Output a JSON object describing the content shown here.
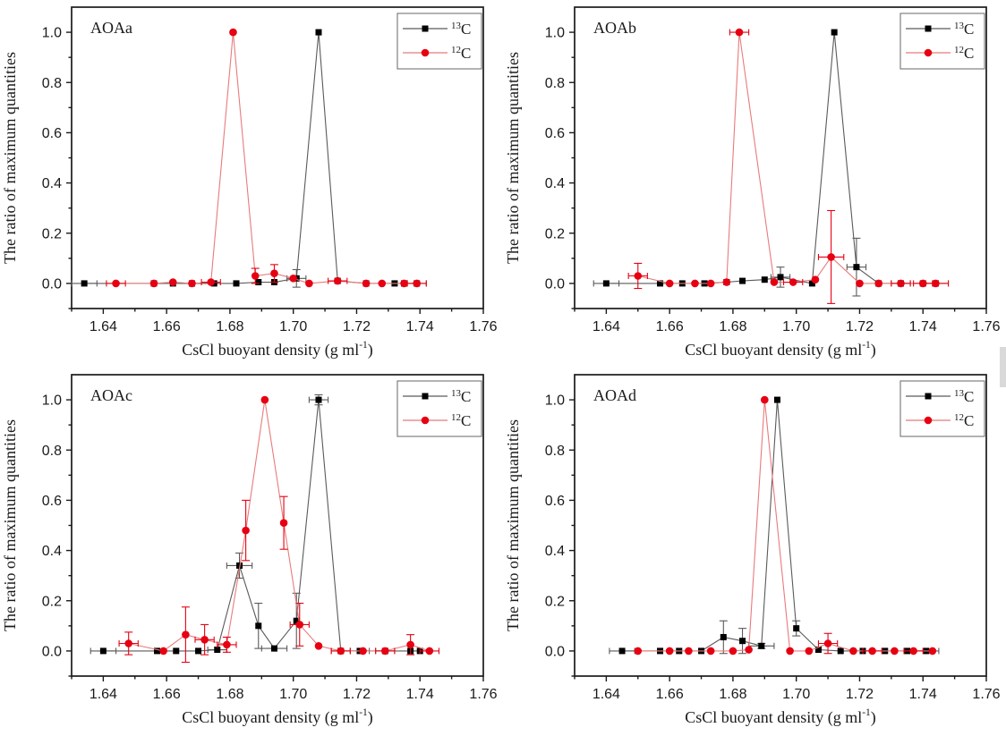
{
  "figure": {
    "background": "#ffffff",
    "ylabel": "The ratio of maximum quantities",
    "xlabel_prefix": "CsCl buoyant density (g ml",
    "xlabel_sup": "-1",
    "xlabel_suffix": ")",
    "colors": {
      "frame": "#1a1a1a",
      "tick": "#1a1a1a",
      "legend_border": "#808080",
      "c13_marker": "#000000",
      "c13_line": "#5a5a5a",
      "c12_marker": "#e60012",
      "c12_line": "#e87b7b"
    },
    "edge_artifact_color": "#d9d9d9"
  },
  "axes": {
    "xlim": [
      1.63,
      1.76
    ],
    "ylim": [
      -0.1,
      1.1
    ],
    "xticks": [
      1.64,
      1.66,
      1.68,
      1.7,
      1.72,
      1.74,
      1.76
    ],
    "xtick_labels": [
      "1.64",
      "1.66",
      "1.68",
      "1.70",
      "1.72",
      "1.74",
      "1.76"
    ],
    "yticks": [
      0.0,
      0.2,
      0.4,
      0.6,
      0.8,
      1.0
    ],
    "ytick_labels": [
      "0.0",
      "0.2",
      "0.4",
      "0.6",
      "0.8",
      "1.0"
    ],
    "xminor_step": 0.01,
    "yminor_step": 0.1,
    "grid": false,
    "legend_position": "top-right"
  },
  "legend": [
    {
      "name": "13C",
      "sup": "13",
      "base": "C",
      "marker": "square",
      "marker_color": "#000000",
      "line_color": "#5a5a5a"
    },
    {
      "name": "12C",
      "sup": "12",
      "base": "C",
      "marker": "circle",
      "marker_color": "#e60012",
      "line_color": "#e87b7b"
    }
  ],
  "chart_data": [
    {
      "type": "line",
      "title": "AOAa",
      "xlabel": "CsCl buoyant density (g ml-1)",
      "ylabel": "The ratio of maximum quantities",
      "series": [
        {
          "name": "13C",
          "marker": "square",
          "color": "#000000",
          "line_color": "#5a5a5a",
          "x": [
            1.634,
            1.656,
            1.662,
            1.668,
            1.675,
            1.682,
            1.689,
            1.694,
            1.701,
            1.708,
            1.714,
            1.723,
            1.732,
            1.735,
            1.739
          ],
          "y": [
            0,
            0,
            0,
            0,
            0,
            0,
            0.005,
            0.005,
            0.02,
            1.0,
            0.01,
            0,
            0,
            0,
            0
          ],
          "yerr": [
            0,
            0,
            0,
            0,
            0,
            0,
            0,
            0,
            0.035,
            0,
            0,
            0,
            0,
            0,
            0
          ],
          "xerr": [
            0.004,
            0,
            0,
            0,
            0,
            0,
            0,
            0,
            0.003,
            0,
            0,
            0,
            0,
            0,
            0.003
          ]
        },
        {
          "name": "12C",
          "marker": "circle",
          "color": "#e60012",
          "line_color": "#e87b7b",
          "x": [
            1.644,
            1.656,
            1.662,
            1.668,
            1.674,
            1.681,
            1.688,
            1.694,
            1.7,
            1.705,
            1.714,
            1.723,
            1.728,
            1.735,
            1.739
          ],
          "y": [
            0,
            0,
            0.005,
            0,
            0.005,
            1.0,
            0.03,
            0.04,
            0.02,
            0,
            0.01,
            0,
            0,
            0,
            0
          ],
          "yerr": [
            0,
            0,
            0,
            0,
            0,
            0,
            0.03,
            0.035,
            0,
            0,
            0,
            0,
            0,
            0,
            0
          ],
          "xerr": [
            0.003,
            0,
            0,
            0,
            0.003,
            0,
            0,
            0,
            0,
            0,
            0.003,
            0,
            0,
            0,
            0.003
          ]
        }
      ]
    },
    {
      "type": "line",
      "title": "AOAb",
      "xlabel": "CsCl buoyant density (g ml-1)",
      "ylabel": "The ratio of maximum quantities",
      "series": [
        {
          "name": "13C",
          "marker": "square",
          "color": "#000000",
          "line_color": "#5a5a5a",
          "x": [
            1.64,
            1.657,
            1.664,
            1.671,
            1.678,
            1.683,
            1.69,
            1.695,
            1.705,
            1.712,
            1.719,
            1.726,
            1.733,
            1.74,
            1.744
          ],
          "y": [
            0,
            0,
            0,
            0,
            0.005,
            0.01,
            0.015,
            0.025,
            0,
            1.0,
            0.065,
            0,
            0,
            0,
            0
          ],
          "yerr": [
            0,
            0,
            0,
            0,
            0,
            0,
            0,
            0.04,
            0,
            0,
            0.115,
            0,
            0,
            0,
            0
          ],
          "xerr": [
            0.004,
            0,
            0,
            0,
            0,
            0,
            0,
            0.003,
            0,
            0,
            0.003,
            0,
            0.003,
            0,
            0.004
          ]
        },
        {
          "name": "12C",
          "marker": "circle",
          "color": "#e60012",
          "line_color": "#e87b7b",
          "x": [
            1.65,
            1.66,
            1.668,
            1.673,
            1.678,
            1.682,
            1.693,
            1.699,
            1.706,
            1.711,
            1.72,
            1.726,
            1.733,
            1.74,
            1.744
          ],
          "y": [
            0.03,
            0,
            0,
            0,
            0.005,
            1.0,
            0.005,
            0.005,
            0.015,
            0.105,
            0,
            0,
            0,
            0,
            0
          ],
          "yerr": [
            0.05,
            0,
            0,
            0,
            0,
            0,
            0,
            0,
            0,
            0.185,
            0,
            0,
            0,
            0,
            0
          ],
          "xerr": [
            0.003,
            0,
            0,
            0,
            0,
            0.003,
            0,
            0.003,
            0,
            0.004,
            0,
            0,
            0.003,
            0.003,
            0.004
          ]
        }
      ]
    },
    {
      "type": "line",
      "title": "AOAc",
      "xlabel": "CsCl buoyant density (g ml-1)",
      "ylabel": "The ratio of maximum quantities",
      "series": [
        {
          "name": "13C",
          "marker": "square",
          "color": "#000000",
          "line_color": "#5a5a5a",
          "x": [
            1.64,
            1.657,
            1.663,
            1.67,
            1.676,
            1.683,
            1.689,
            1.694,
            1.701,
            1.708,
            1.715,
            1.721,
            1.729,
            1.737,
            1.74
          ],
          "y": [
            0,
            0,
            0,
            0,
            0.005,
            0.34,
            0.1,
            0.01,
            0.12,
            1.0,
            0,
            0,
            0,
            0,
            0
          ],
          "yerr": [
            0,
            0,
            0,
            0,
            0,
            0.05,
            0.09,
            0,
            0.11,
            0.02,
            0,
            0,
            0,
            0,
            0
          ],
          "xerr": [
            0.004,
            0,
            0,
            0,
            0.003,
            0.004,
            0,
            0.004,
            0,
            0.003,
            0.003,
            0.003,
            0.003,
            0,
            0.003
          ]
        },
        {
          "name": "12C",
          "marker": "circle",
          "color": "#e60012",
          "line_color": "#e87b7b",
          "x": [
            1.648,
            1.659,
            1.666,
            1.672,
            1.679,
            1.685,
            1.691,
            1.697,
            1.702,
            1.708,
            1.715,
            1.722,
            1.729,
            1.737,
            1.743
          ],
          "y": [
            0.03,
            0,
            0.065,
            0.045,
            0.025,
            0.48,
            1.0,
            0.51,
            0.105,
            0.02,
            0,
            0,
            0,
            0.025,
            0
          ],
          "yerr": [
            0.045,
            0,
            0.11,
            0.06,
            0.03,
            0.12,
            0,
            0.105,
            0.085,
            0,
            0,
            0,
            0,
            0.04,
            0
          ],
          "xerr": [
            0.003,
            0,
            0,
            0.003,
            0.003,
            0,
            0,
            0,
            0.003,
            0,
            0.003,
            0,
            0.003,
            0,
            0.003
          ]
        }
      ]
    },
    {
      "type": "line",
      "title": "AOAd",
      "xlabel": "CsCl buoyant density (g ml-1)",
      "ylabel": "The ratio of maximum quantities",
      "series": [
        {
          "name": "13C",
          "marker": "square",
          "color": "#000000",
          "line_color": "#5a5a5a",
          "x": [
            1.645,
            1.657,
            1.663,
            1.67,
            1.677,
            1.683,
            1.689,
            1.694,
            1.7,
            1.707,
            1.714,
            1.721,
            1.728,
            1.735,
            1.741
          ],
          "y": [
            0,
            0,
            0,
            0,
            0.055,
            0.04,
            0.02,
            1.0,
            0.09,
            0.005,
            0,
            0,
            0,
            0,
            0
          ],
          "yerr": [
            0,
            0,
            0,
            0,
            0.065,
            0.05,
            0.01,
            0,
            0.03,
            0,
            0,
            0,
            0,
            0,
            0
          ],
          "xerr": [
            0.004,
            0,
            0,
            0,
            0,
            0,
            0.004,
            0,
            0,
            0,
            0,
            0.003,
            0,
            0,
            0.004
          ]
        },
        {
          "name": "12C",
          "marker": "circle",
          "color": "#e60012",
          "line_color": "#e87b7b",
          "x": [
            1.65,
            1.66,
            1.666,
            1.673,
            1.68,
            1.685,
            1.69,
            1.698,
            1.704,
            1.71,
            1.718,
            1.724,
            1.731,
            1.737,
            1.743
          ],
          "y": [
            0,
            0,
            0,
            0,
            0,
            0.005,
            1.0,
            0,
            0,
            0.03,
            0,
            0,
            0,
            0,
            0
          ],
          "yerr": [
            0,
            0,
            0,
            0,
            0,
            0,
            0,
            0,
            0,
            0.04,
            0,
            0,
            0,
            0,
            0
          ],
          "xerr": [
            0,
            0,
            0,
            0,
            0,
            0,
            0,
            0,
            0,
            0.003,
            0,
            0.003,
            0,
            0.003,
            0
          ]
        }
      ]
    }
  ]
}
